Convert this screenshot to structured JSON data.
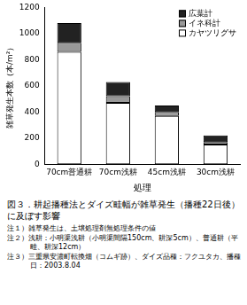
{
  "chart_data": {
    "type": "bar",
    "stacked": true,
    "title": "図３．耕起播種法とダイズ畦幅が雑草発生（播種22日後）に及ぼす影響",
    "notes": [
      "注１）雑草発生は、土壌処理剤無処理条件の値",
      "注２）浅耕：小明渠浅耕（小明渠間隔150cm、耕深5cm）、普通耕（平畦、耕深12cm）",
      "注３）三重県安濃町転換畑（コムギ跡）、ダイズ品種：フクユタカ、播種日：2003.8.04"
    ],
    "x_label": "処理",
    "y_label": "雑草発生本数（本/m²）",
    "categories": [
      "70cm普通耕",
      "70cm浅耕",
      "45cm浅耕",
      "30cm浅耕"
    ],
    "series": [
      {
        "name": "カヤツリグサ",
        "color": "#ffffff",
        "values": [
          860,
          470,
          370,
          150
        ]
      },
      {
        "name": "イネ科計",
        "color": "#999999",
        "values": [
          70,
          50,
          30,
          20
        ]
      },
      {
        "name": "広葉計",
        "color": "#222222",
        "values": [
          150,
          110,
          50,
          50
        ]
      }
    ],
    "ylim": [
      0,
      1200
    ],
    "yticks": [
      0,
      200,
      400,
      600,
      800,
      1000,
      1200
    ],
    "grid": false,
    "legend": "upper right"
  }
}
